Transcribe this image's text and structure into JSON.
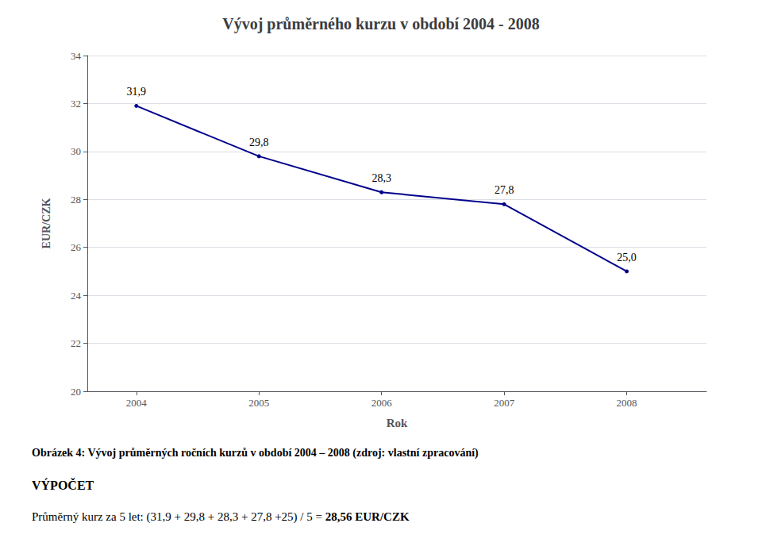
{
  "chart_data": {
    "type": "line",
    "title": "Vývoj průměrného kurzu v období 2004 - 2008",
    "x": [
      2004,
      2005,
      2006,
      2007,
      2008
    ],
    "values": [
      31.9,
      29.8,
      28.3,
      27.8,
      25
    ],
    "value_labels": [
      "31,9",
      "29,8",
      "28,3",
      "27,8",
      "25,0"
    ],
    "data_labels": true,
    "color": "#00008B",
    "xlabel": "Rok",
    "ylabel": "EUR/CZK",
    "xlim": [
      2003.6,
      2008.65
    ],
    "xticks": [
      2004,
      2005,
      2006,
      2007,
      2008
    ],
    "ylim": [
      20,
      34
    ],
    "yticks": [
      20,
      22,
      24,
      26,
      28,
      30,
      32,
      34
    ],
    "grid": true,
    "annotations": [
      "Obrázek 4: Vývoj průměrných ročních kurzů v období 2004 – 2008 (zdroj: vlastní zpracování)",
      "VÝPOČET",
      "Průměrný kurz za 5 let: (31,9 + 29,8 + 28,3 + 27,8 +25) / 5 =",
      "28,56 EUR/CZK"
    ]
  }
}
